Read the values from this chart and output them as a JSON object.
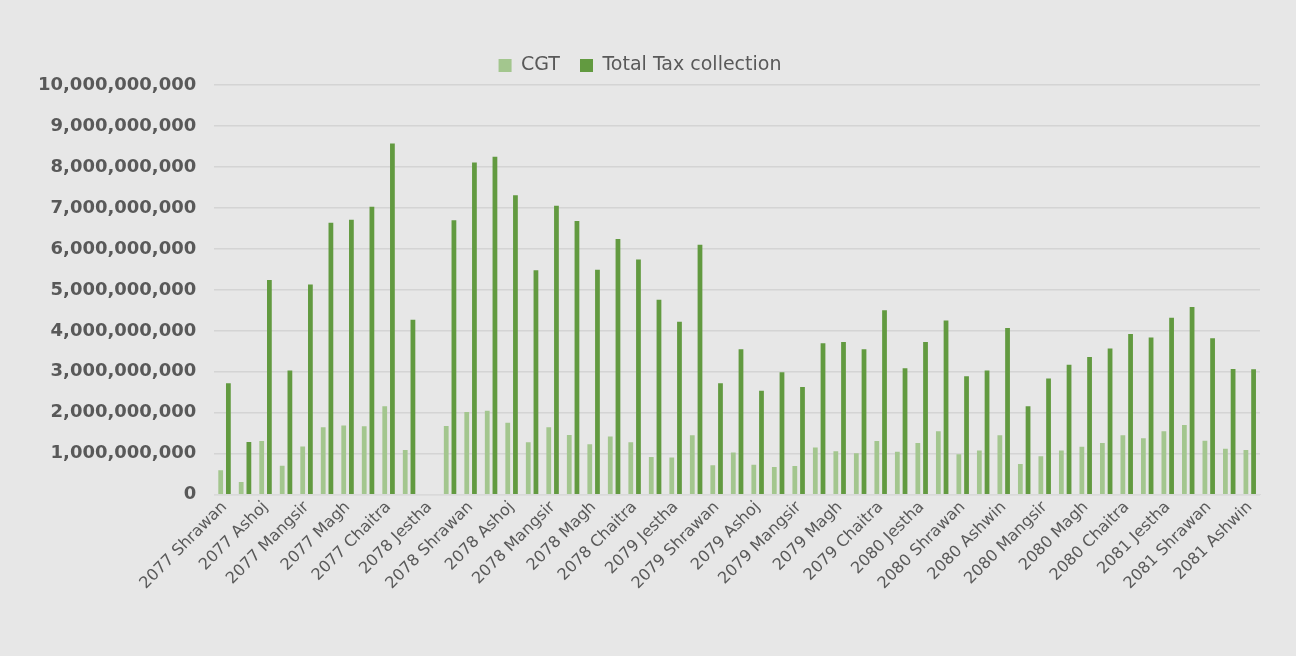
{
  "chart_data": {
    "type": "bar",
    "categories": [
      "2077 Shrawan",
      null,
      "2077 Ashoj",
      null,
      "2077 Mangsir",
      null,
      "2077 Magh",
      null,
      "2077 Chaitra",
      null,
      "2078 Jestha",
      null,
      "2078 Shrawan",
      null,
      "2078 Ashoj",
      null,
      "2078 Mangsir",
      null,
      "2078 Magh",
      null,
      "2078 Chaitra",
      null,
      "2079 Jestha",
      null,
      "2079 Shrawan",
      null,
      "2079 Ashoj",
      null,
      "2079 Mangsir",
      null,
      "2079 Magh",
      null,
      "2079 Chaitra",
      null,
      "2080 Jestha",
      null,
      "2080 Shrawan",
      null,
      "2080 Ashwin",
      null,
      "2080 Mangsir",
      null,
      "2080 Magh",
      null,
      "2080 Chaitra",
      null,
      "2081 Jestha",
      null,
      "2081 Shrawan",
      null,
      "2081 Ashwin"
    ],
    "series": [
      {
        "name": "CGT",
        "color": "#a3c68e",
        "values": [
          600000000,
          310000000,
          1310000000,
          710000000,
          1180000000,
          1650000000,
          1690000000,
          1670000000,
          2160000000,
          1090000000,
          20000000,
          1680000000,
          2020000000,
          2050000000,
          1760000000,
          1280000000,
          1650000000,
          1460000000,
          1230000000,
          1420000000,
          1280000000,
          920000000,
          910000000,
          1450000000,
          720000000,
          1030000000,
          730000000,
          680000000,
          700000000,
          1150000000,
          1060000000,
          1010000000,
          1310000000,
          1050000000,
          1260000000,
          1550000000,
          990000000,
          1080000000,
          1450000000,
          750000000,
          940000000,
          1080000000,
          1170000000,
          1260000000,
          1450000000,
          1380000000,
          1550000000,
          1700000000,
          1320000000,
          1120000000,
          1090000000
        ]
      },
      {
        "name": "Total Tax collection",
        "color": "#629a40",
        "values": [
          2720000000,
          1290000000,
          5240000000,
          3030000000,
          5130000000,
          6640000000,
          6710000000,
          7030000000,
          8570000000,
          4270000000,
          0,
          6700000000,
          8110000000,
          8250000000,
          7310000000,
          5480000000,
          7050000000,
          6680000000,
          5490000000,
          6240000000,
          5740000000,
          4760000000,
          4220000000,
          6100000000,
          2720000000,
          3550000000,
          2540000000,
          2990000000,
          2630000000,
          3700000000,
          3730000000,
          3550000000,
          4500000000,
          3090000000,
          3730000000,
          4250000000,
          2890000000,
          3030000000,
          4070000000,
          2160000000,
          2840000000,
          3170000000,
          3360000000,
          3570000000,
          3920000000,
          3840000000,
          4320000000,
          4580000000,
          3820000000,
          3070000000,
          3060000000
        ]
      }
    ],
    "ylim": [
      0,
      10000000000
    ],
    "yticks": [
      {
        "value": 0,
        "label": "0"
      },
      {
        "value": 1000000000,
        "label": "1,000,000,000"
      },
      {
        "value": 2000000000,
        "label": "2,000,000,000"
      },
      {
        "value": 3000000000,
        "label": "3,000,000,000"
      },
      {
        "value": 4000000000,
        "label": "4,000,000,000"
      },
      {
        "value": 5000000000,
        "label": "5,000,000,000"
      },
      {
        "value": 6000000000,
        "label": "6,000,000,000"
      },
      {
        "value": 7000000000,
        "label": "7,000,000,000"
      },
      {
        "value": 8000000000,
        "label": "8,000,000,000"
      },
      {
        "value": 9000000000,
        "label": "9,000,000,000"
      },
      {
        "value": 10000000000,
        "label": "10,000,000,000"
      }
    ],
    "grid": "y",
    "legend": "top"
  }
}
